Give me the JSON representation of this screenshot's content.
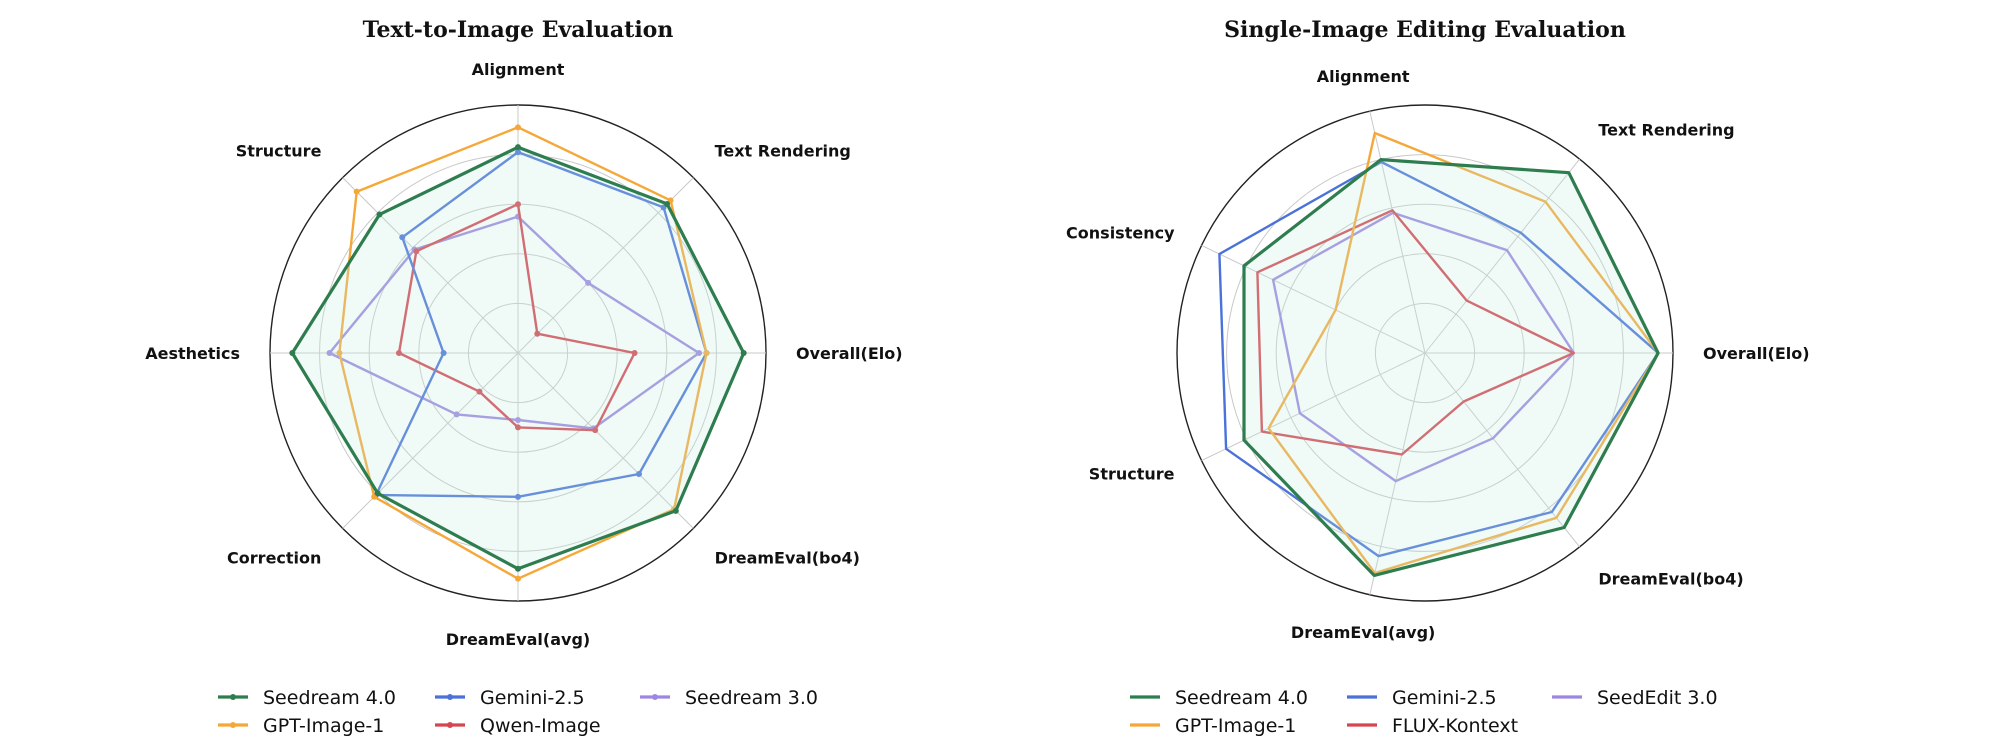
{
  "chart_data": [
    {
      "type": "radar",
      "title": "Text-to-Image Evaluation",
      "axes": [
        "Overall(Elo)",
        "Text Rendering",
        "Alignment",
        "Structure",
        "Aesthetics",
        "Correction",
        "DreamEval(avg)",
        "DreamEval(bo4)"
      ],
      "rlim": [
        0,
        1
      ],
      "grid": true,
      "legend_position": "bottom",
      "markers": true,
      "series": [
        {
          "name": "Seedream 4.0",
          "color": "#2e7d4f",
          "values": [
            0.91,
            0.85,
            0.83,
            0.79,
            0.91,
            0.8,
            0.87,
            0.9
          ]
        },
        {
          "name": "GPT-Image-1",
          "color": "#f5a838",
          "values": [
            0.76,
            0.87,
            0.91,
            0.92,
            0.72,
            0.82,
            0.91,
            0.89
          ]
        },
        {
          "name": "Gemini-2.5",
          "color": "#4a72d9",
          "values": [
            0.76,
            0.83,
            0.81,
            0.66,
            0.3,
            0.81,
            0.58,
            0.69
          ]
        },
        {
          "name": "Qwen-Image",
          "color": "#d64550",
          "values": [
            0.47,
            0.11,
            0.6,
            0.58,
            0.48,
            0.22,
            0.3,
            0.44
          ]
        },
        {
          "name": "Seedream 3.0",
          "color": "#9d87e0",
          "values": [
            0.73,
            0.4,
            0.55,
            0.59,
            0.76,
            0.35,
            0.27,
            0.43
          ]
        }
      ]
    },
    {
      "type": "radar",
      "title": "Single-Image Editing Evaluation",
      "axes": [
        "Overall(Elo)",
        "Text Rendering",
        "Alignment",
        "Consistency",
        "Structure",
        "DreamEval(avg)",
        "DreamEval(bo4)"
      ],
      "rlim": [
        0,
        1
      ],
      "grid": true,
      "legend_position": "bottom",
      "markers": false,
      "series": [
        {
          "name": "Seedream 4.0",
          "color": "#2e7d4f",
          "values": [
            0.94,
            0.93,
            0.8,
            0.81,
            0.81,
            0.92,
            0.9
          ]
        },
        {
          "name": "GPT-Image-1",
          "color": "#f5a838",
          "values": [
            0.94,
            0.78,
            0.91,
            0.4,
            0.7,
            0.91,
            0.85
          ]
        },
        {
          "name": "Gemini-2.5",
          "color": "#4a72d9",
          "values": [
            0.94,
            0.62,
            0.79,
            0.92,
            0.89,
            0.84,
            0.82
          ]
        },
        {
          "name": "FLUX-Kontext",
          "color": "#d64550",
          "values": [
            0.6,
            0.27,
            0.59,
            0.75,
            0.73,
            0.42,
            0.25
          ]
        },
        {
          "name": "SeedEdit 3.0",
          "color": "#9d87e0",
          "values": [
            0.6,
            0.53,
            0.58,
            0.68,
            0.56,
            0.53,
            0.44
          ]
        }
      ]
    }
  ]
}
